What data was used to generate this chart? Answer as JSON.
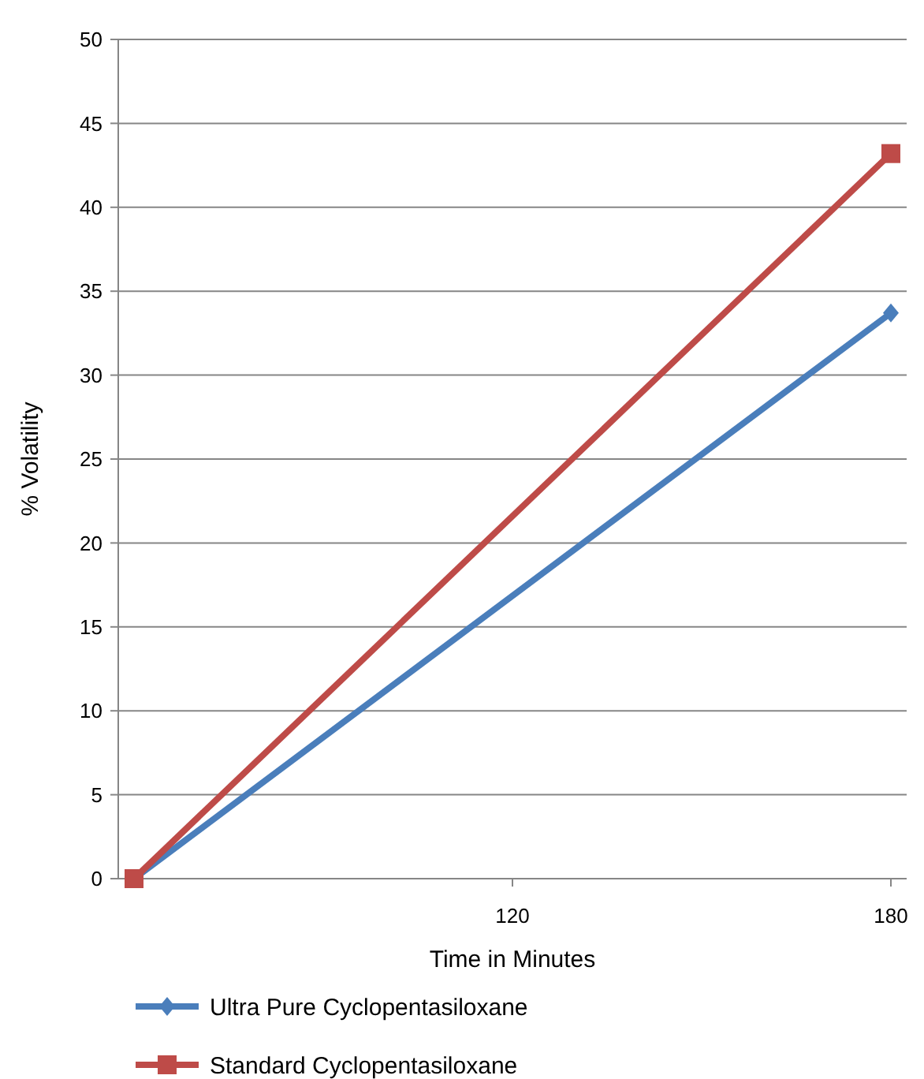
{
  "chart_data": {
    "type": "line",
    "xlabel": "Time in Minutes",
    "ylabel": "% Volatility",
    "categories": [
      null,
      "120",
      "180"
    ],
    "series": [
      {
        "name": "Ultra Pure Cyclopentasiloxane",
        "color": "#4a7ebb",
        "marker": "diamond",
        "values": [
          0,
          null,
          33.7
        ]
      },
      {
        "name": "Standard Cyclopentasiloxane",
        "color": "#be4b48",
        "marker": "square",
        "values": [
          0,
          null,
          43.2
        ]
      }
    ],
    "ylim": [
      0,
      50
    ],
    "yticks": [
      0,
      5,
      10,
      15,
      20,
      25,
      30,
      35,
      40,
      45,
      50
    ],
    "grid": "y",
    "legend": "bottom"
  }
}
